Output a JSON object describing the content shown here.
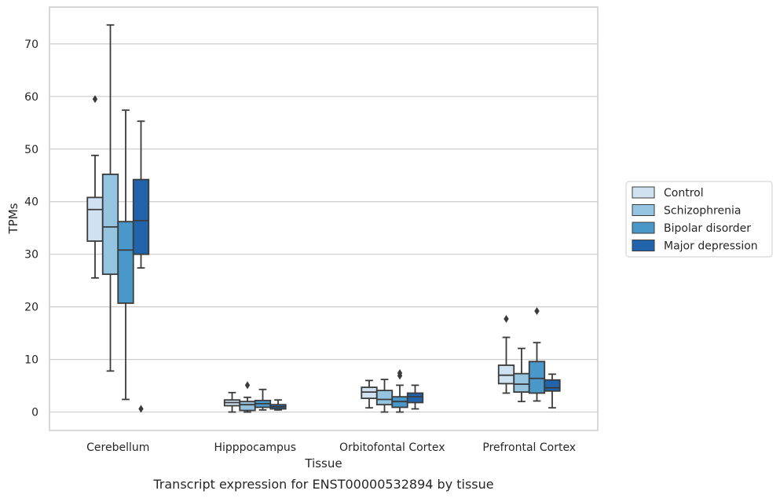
{
  "chart_data": {
    "type": "boxplot",
    "xlabel": "Tissue",
    "ylabel": "TPMs",
    "caption": "Transcript expression for ENST00000532894 by tissue",
    "ylim": [
      -3.5,
      77
    ],
    "yticks": [
      0,
      10,
      20,
      30,
      40,
      50,
      60,
      70
    ],
    "grid": true,
    "legend_position": "right",
    "categories": [
      "Cerebellum",
      "Hipppocampus",
      "Orbitofontal Cortex",
      "Prefrontal Cortex"
    ],
    "series": [
      {
        "name": "Control",
        "color": "#d0e1f2",
        "boxes": [
          {
            "whislo": 25.5,
            "q1": 32.5,
            "med": 38.5,
            "q3": 40.8,
            "whishi": 48.8,
            "fliers": [
              59.5
            ]
          },
          {
            "whislo": 0.0,
            "q1": 1.2,
            "med": 1.8,
            "q3": 2.3,
            "whishi": 3.7,
            "fliers": []
          },
          {
            "whislo": 0.8,
            "q1": 2.6,
            "med": 3.8,
            "q3": 4.7,
            "whishi": 6.0,
            "fliers": []
          },
          {
            "whislo": 3.6,
            "q1": 5.4,
            "med": 7.0,
            "q3": 8.9,
            "whishi": 14.2,
            "fliers": [
              17.7
            ]
          }
        ]
      },
      {
        "name": "Schizophrenia",
        "color": "#94c4df",
        "boxes": [
          {
            "whislo": 7.8,
            "q1": 26.2,
            "med": 35.2,
            "q3": 45.2,
            "whishi": 73.6,
            "fliers": []
          },
          {
            "whislo": 0.0,
            "q1": 0.3,
            "med": 1.4,
            "q3": 2.0,
            "whishi": 2.8,
            "fliers": [
              5.1
            ]
          },
          {
            "whislo": 0.0,
            "q1": 1.4,
            "med": 2.4,
            "q3": 4.1,
            "whishi": 6.2,
            "fliers": []
          },
          {
            "whislo": 2.0,
            "q1": 3.8,
            "med": 5.3,
            "q3": 7.3,
            "whishi": 12.1,
            "fliers": []
          }
        ]
      },
      {
        "name": "Bipolar disorder",
        "color": "#4a98c9",
        "boxes": [
          {
            "whislo": 2.4,
            "q1": 20.7,
            "med": 30.8,
            "q3": 36.2,
            "whishi": 57.4,
            "fliers": []
          },
          {
            "whislo": 0.4,
            "q1": 0.9,
            "med": 1.6,
            "q3": 2.2,
            "whishi": 4.3,
            "fliers": []
          },
          {
            "whislo": 0.0,
            "q1": 0.9,
            "med": 2.0,
            "q3": 2.9,
            "whishi": 5.1,
            "fliers": [
              6.9,
              7.4
            ]
          },
          {
            "whislo": 2.1,
            "q1": 3.6,
            "med": 6.4,
            "q3": 9.6,
            "whishi": 13.2,
            "fliers": [
              19.2
            ]
          }
        ]
      },
      {
        "name": "Major depression",
        "color": "#2164ab",
        "boxes": [
          {
            "whislo": 27.4,
            "q1": 30.0,
            "med": 36.4,
            "q3": 44.2,
            "whishi": 55.3,
            "fliers": [
              0.6
            ]
          },
          {
            "whislo": 0.4,
            "q1": 0.6,
            "med": 1.0,
            "q3": 1.4,
            "whishi": 2.3,
            "fliers": []
          },
          {
            "whislo": 0.6,
            "q1": 1.8,
            "med": 2.9,
            "q3": 3.6,
            "whishi": 5.1,
            "fliers": []
          },
          {
            "whislo": 0.8,
            "q1": 4.0,
            "med": 4.6,
            "q3": 6.1,
            "whishi": 7.2,
            "fliers": []
          }
        ]
      }
    ]
  }
}
